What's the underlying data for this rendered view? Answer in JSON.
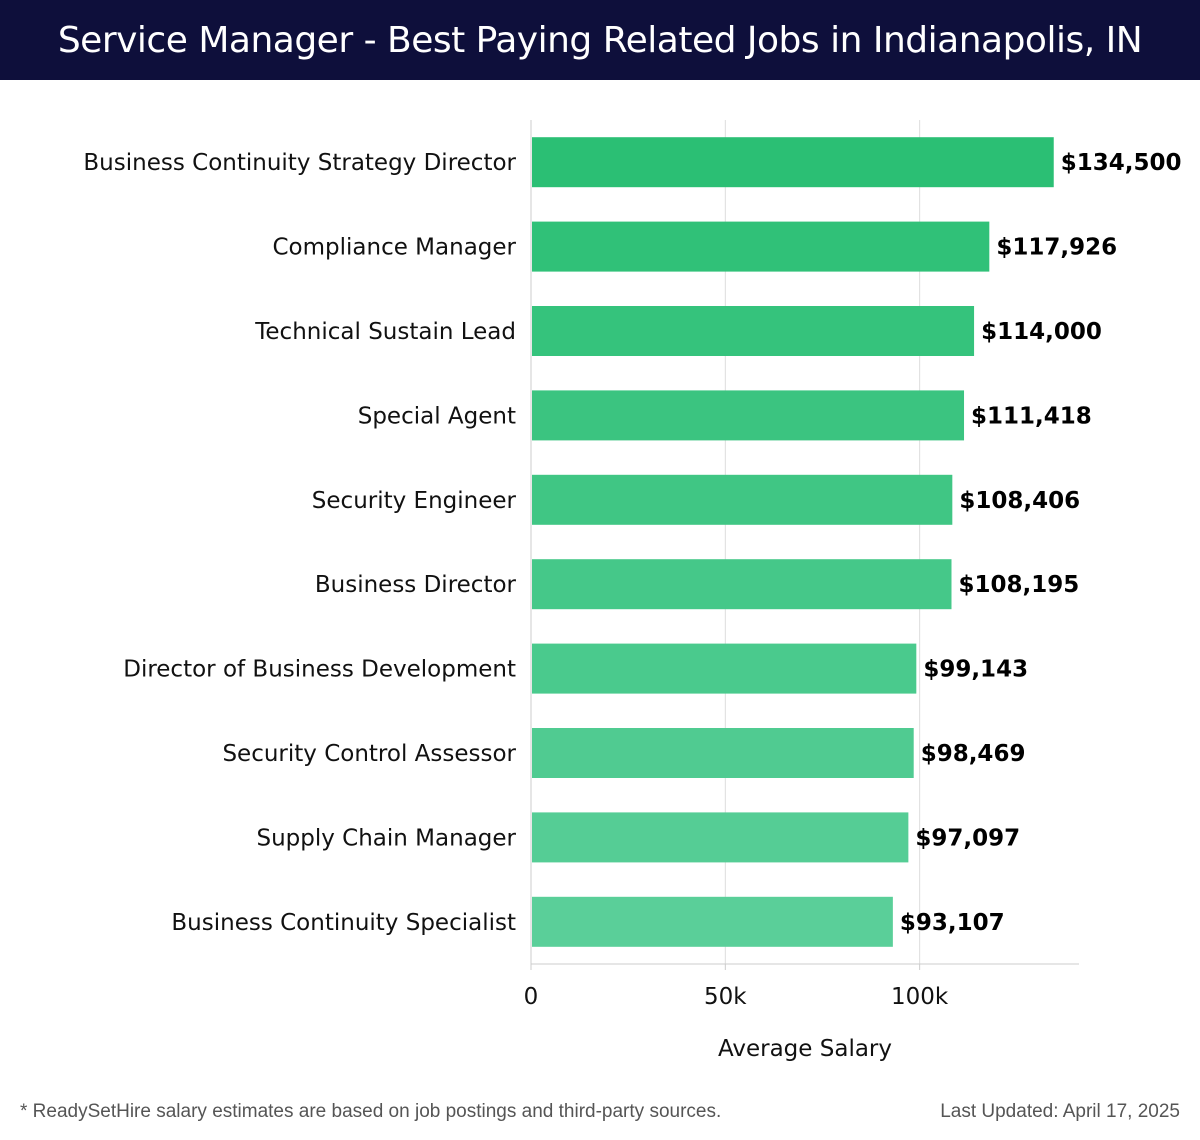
{
  "header": {
    "title": "Service Manager - Best Paying Related Jobs in Indianapolis, IN"
  },
  "footer": {
    "note": "* ReadySetHire salary estimates are based on job postings and third-party sources.",
    "updated": "Last Updated: April 17, 2025"
  },
  "colors": {
    "header_bg": "#0e0f3b",
    "bar_top": "#2bbf74",
    "bar_bottom": "#5acf99"
  },
  "chart_data": {
    "type": "bar",
    "orientation": "horizontal",
    "title": "Service Manager - Best Paying Related Jobs in Indianapolis, IN",
    "xlabel": "Average Salary",
    "ylabel": "",
    "xlim": [
      0,
      141000
    ],
    "grid": true,
    "x_ticks": [
      {
        "value": 0,
        "label": "0"
      },
      {
        "value": 50000,
        "label": "50k"
      },
      {
        "value": 100000,
        "label": "100k"
      }
    ],
    "categories": [
      "Business Continuity Strategy Director",
      "Compliance Manager",
      "Technical Sustain Lead",
      "Special Agent",
      "Security Engineer",
      "Business Director",
      "Director of Business Development",
      "Security Control Assessor",
      "Supply Chain Manager",
      "Business Continuity Specialist"
    ],
    "values": [
      134500,
      117926,
      114000,
      111418,
      108406,
      108195,
      99143,
      98469,
      97097,
      93107
    ],
    "value_labels": [
      "$134,500",
      "$117,926",
      "$114,000",
      "$111,418",
      "$108,406",
      "$108,195",
      "$99,143",
      "$98,469",
      "$97,097",
      "$93,107"
    ]
  }
}
